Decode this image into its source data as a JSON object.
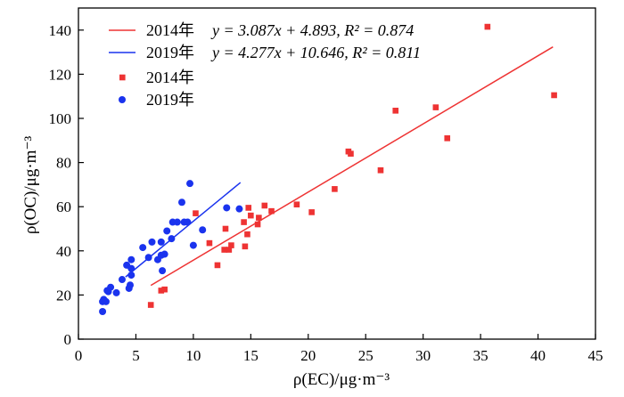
{
  "chart_data": {
    "type": "scatter",
    "xlabel": "ρ(EC)/μg·m⁻³",
    "ylabel": "ρ(OC)/μg·m⁻³",
    "xlim": [
      0,
      45
    ],
    "ylim": [
      0,
      150
    ],
    "xticks": [
      0,
      5,
      10,
      15,
      20,
      25,
      30,
      35,
      40,
      45
    ],
    "yticks": [
      0,
      20,
      40,
      60,
      80,
      100,
      120,
      140
    ],
    "grid": false,
    "legend_position": "top-left",
    "colors": {
      "s2014": "#ee3333",
      "s2019": "#1a33ee"
    },
    "fit_lines": [
      {
        "name": "2014年",
        "equation": "y = 3.087x + 4.893, R² = 0.874",
        "slope": 3.087,
        "intercept": 4.893,
        "x_range": [
          6.3,
          41.3
        ],
        "color": "#ee3333"
      },
      {
        "name": "2019年",
        "equation": "y = 4.277x + 10.646, R² = 0.811",
        "slope": 4.277,
        "intercept": 10.646,
        "x_range": [
          4.1,
          14.1
        ],
        "color": "#1a33ee"
      }
    ],
    "series": [
      {
        "name": "2014年",
        "marker": "square",
        "color": "#ee3333",
        "points": [
          [
            6.3,
            15.5
          ],
          [
            7.2,
            22
          ],
          [
            7.5,
            22.5
          ],
          [
            10.2,
            57
          ],
          [
            11.4,
            43.5
          ],
          [
            12.1,
            33.5
          ],
          [
            12.7,
            40.5
          ],
          [
            12.8,
            50
          ],
          [
            13.1,
            40.5
          ],
          [
            13.3,
            42.5
          ],
          [
            14.4,
            53
          ],
          [
            14.5,
            42
          ],
          [
            14.7,
            47.5
          ],
          [
            14.8,
            59.5
          ],
          [
            15.0,
            56
          ],
          [
            15.6,
            52
          ],
          [
            15.7,
            55
          ],
          [
            16.2,
            60.5
          ],
          [
            16.8,
            58
          ],
          [
            19.0,
            61
          ],
          [
            20.3,
            57.5
          ],
          [
            22.3,
            68
          ],
          [
            23.5,
            85
          ],
          [
            23.7,
            84
          ],
          [
            26.3,
            76.5
          ],
          [
            27.6,
            103.5
          ],
          [
            31.1,
            105
          ],
          [
            32.1,
            91
          ],
          [
            35.6,
            141.5
          ],
          [
            41.4,
            110.5
          ]
        ]
      },
      {
        "name": "2019年",
        "marker": "circle",
        "color": "#1a33ee",
        "points": [
          [
            2.1,
            12.5
          ],
          [
            2.1,
            17
          ],
          [
            2.2,
            18
          ],
          [
            2.4,
            17
          ],
          [
            2.5,
            22
          ],
          [
            2.6,
            21.5
          ],
          [
            2.8,
            23.5
          ],
          [
            3.3,
            21
          ],
          [
            3.8,
            27
          ],
          [
            4.2,
            33.5
          ],
          [
            4.4,
            23
          ],
          [
            4.5,
            24.5
          ],
          [
            4.6,
            29
          ],
          [
            4.6,
            32
          ],
          [
            4.6,
            36
          ],
          [
            5.6,
            41.5
          ],
          [
            6.1,
            37
          ],
          [
            6.4,
            44
          ],
          [
            6.9,
            36
          ],
          [
            7.2,
            44
          ],
          [
            7.2,
            38
          ],
          [
            7.3,
            31
          ],
          [
            7.5,
            38.5
          ],
          [
            7.7,
            49
          ],
          [
            8.1,
            45.5
          ],
          [
            8.2,
            53
          ],
          [
            8.6,
            53
          ],
          [
            9.0,
            62
          ],
          [
            9.2,
            53
          ],
          [
            9.5,
            53
          ],
          [
            9.7,
            70.5
          ],
          [
            10.0,
            42.5
          ],
          [
            10.8,
            49.5
          ],
          [
            12.9,
            59.5
          ],
          [
            14.0,
            59
          ]
        ]
      }
    ]
  }
}
